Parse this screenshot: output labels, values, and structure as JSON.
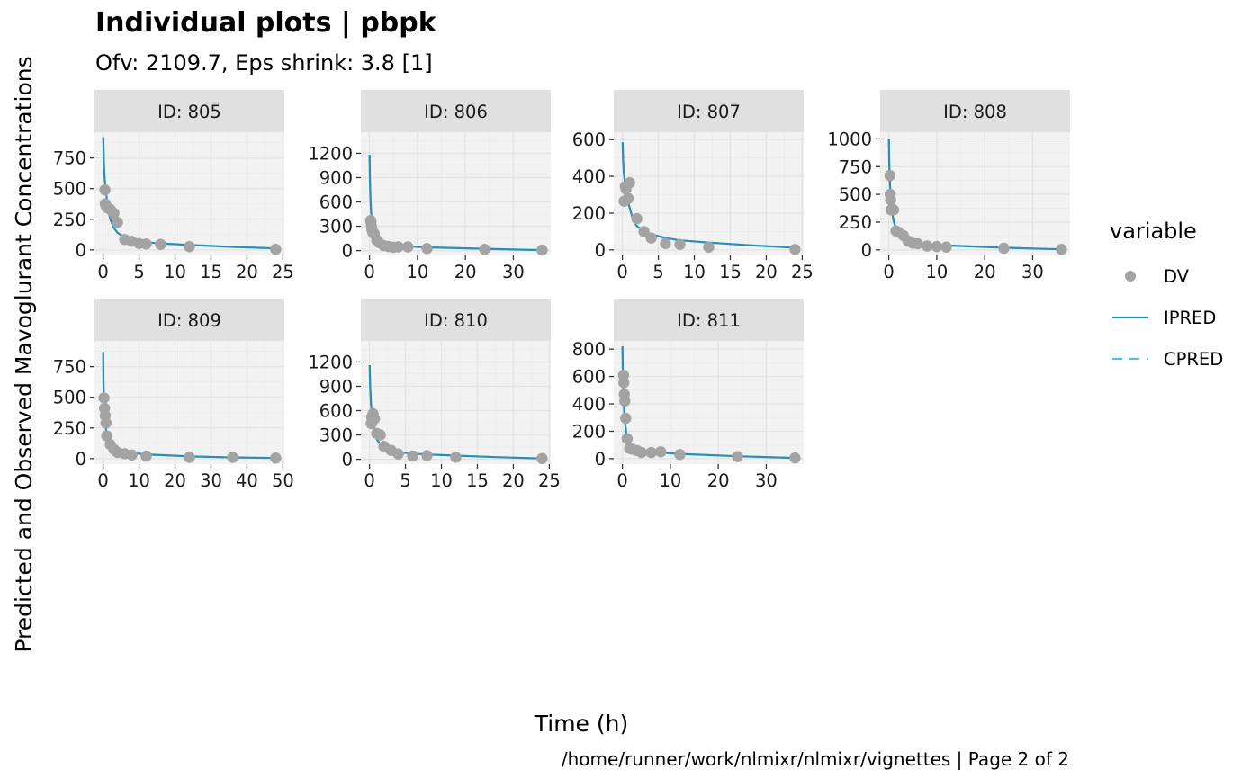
{
  "colors": {
    "panel_bg": "#f2f2f2",
    "grid_major": "#e3e3e3",
    "strip_bg": "#e0e0e0",
    "dv": "#a3a3a3",
    "ipred": "#2a8fb3",
    "cpred": "#4fc3e0",
    "tick": "#333333"
  },
  "chart_data": {
    "type": "scatter",
    "title": "Individual plots | pbpk",
    "subtitle": "Ofv: 2109.7, Eps shrink: 3.8 [1]",
    "xlabel": "Time (h)",
    "ylabel": "Predicted and Observed Mavoglurant Concentrations",
    "caption": "/home/runner/work/nlmixr/nlmixr/vignettes | Page 2 of 2",
    "legend": {
      "title": "variable",
      "position": "right",
      "entries": [
        {
          "label": "DV",
          "symbol": "point"
        },
        {
          "label": "IPRED",
          "symbol": "solid-line"
        },
        {
          "label": "CPRED",
          "symbol": "dashed-line"
        }
      ]
    },
    "grid": true,
    "panels": [
      {
        "strip": "ID: 805",
        "xlim": [
          -1.2,
          25.2
        ],
        "ylim": [
          -45,
          960
        ],
        "xticks": [
          0,
          5,
          10,
          15,
          20,
          25
        ],
        "yticks": [
          0,
          250,
          500,
          750
        ],
        "dv": [
          [
            0.25,
            490
          ],
          [
            0.3,
            375
          ],
          [
            0.4,
            360
          ],
          [
            0.5,
            350
          ],
          [
            0.7,
            340
          ],
          [
            1.0,
            330
          ],
          [
            1.5,
            300
          ],
          [
            2,
            225
          ],
          [
            3,
            85
          ],
          [
            4,
            70
          ],
          [
            5,
            52
          ],
          [
            6,
            48
          ],
          [
            8,
            45
          ],
          [
            12,
            27
          ],
          [
            24,
            5
          ]
        ],
        "ipred": [
          [
            0.02,
            920
          ],
          [
            0.1,
            720
          ],
          [
            0.2,
            590
          ],
          [
            0.4,
            470
          ],
          [
            0.6,
            380
          ],
          [
            0.8,
            300
          ],
          [
            1,
            250
          ],
          [
            1.5,
            180
          ],
          [
            2,
            140
          ],
          [
            3,
            100
          ],
          [
            4,
            80
          ],
          [
            6,
            63
          ],
          [
            8,
            53
          ],
          [
            12,
            40
          ],
          [
            18,
            25
          ],
          [
            24,
            12
          ]
        ]
      },
      {
        "strip": "ID: 806",
        "xlim": [
          -1.8,
          37.8
        ],
        "ylim": [
          -60,
          1460
        ],
        "xticks": [
          0,
          10,
          20,
          30
        ],
        "yticks": [
          0,
          300,
          600,
          900,
          1200
        ],
        "dv": [
          [
            0.25,
            370
          ],
          [
            0.3,
            355
          ],
          [
            0.4,
            300
          ],
          [
            0.5,
            260
          ],
          [
            0.7,
            220
          ],
          [
            1,
            210
          ],
          [
            1.5,
            130
          ],
          [
            2,
            100
          ],
          [
            3,
            60
          ],
          [
            4,
            50
          ],
          [
            5,
            40
          ],
          [
            6,
            45
          ],
          [
            8,
            45
          ],
          [
            12,
            25
          ],
          [
            24,
            15
          ],
          [
            36,
            5
          ]
        ],
        "ipred": [
          [
            0.02,
            1180
          ],
          [
            0.1,
            850
          ],
          [
            0.2,
            620
          ],
          [
            0.4,
            430
          ],
          [
            0.6,
            330
          ],
          [
            0.8,
            260
          ],
          [
            1,
            210
          ],
          [
            1.5,
            150
          ],
          [
            2,
            120
          ],
          [
            3,
            90
          ],
          [
            4,
            75
          ],
          [
            6,
            60
          ],
          [
            8,
            52
          ],
          [
            12,
            40
          ],
          [
            24,
            22
          ],
          [
            36,
            5
          ]
        ]
      },
      {
        "strip": "ID: 807",
        "xlim": [
          -1.2,
          25.2
        ],
        "ylim": [
          -30,
          640
        ],
        "xticks": [
          0,
          5,
          10,
          15,
          20,
          25
        ],
        "yticks": [
          0,
          200,
          400,
          600
        ],
        "dv": [
          [
            0.25,
            265
          ],
          [
            0.4,
            345
          ],
          [
            0.5,
            330
          ],
          [
            0.8,
            280
          ],
          [
            1,
            365
          ],
          [
            2,
            170
          ],
          [
            3,
            100
          ],
          [
            4,
            65
          ],
          [
            6,
            35
          ],
          [
            8,
            30
          ],
          [
            12,
            15
          ],
          [
            24,
            3
          ]
        ],
        "ipred": [
          [
            0.02,
            585
          ],
          [
            0.1,
            490
          ],
          [
            0.2,
            420
          ],
          [
            0.4,
            350
          ],
          [
            0.6,
            300
          ],
          [
            0.8,
            260
          ],
          [
            1,
            230
          ],
          [
            1.5,
            160
          ],
          [
            2,
            130
          ],
          [
            3,
            100
          ],
          [
            4,
            85
          ],
          [
            6,
            65
          ],
          [
            8,
            52
          ],
          [
            12,
            40
          ],
          [
            18,
            25
          ],
          [
            24,
            12
          ]
        ]
      },
      {
        "strip": "ID: 808",
        "xlim": [
          -1.8,
          37.8
        ],
        "ylim": [
          -50,
          1060
        ],
        "xticks": [
          0,
          10,
          20,
          30
        ],
        "yticks": [
          0,
          250,
          500,
          750,
          1000
        ],
        "dv": [
          [
            0.25,
            670
          ],
          [
            0.3,
            500
          ],
          [
            0.4,
            450
          ],
          [
            0.5,
            360
          ],
          [
            0.7,
            370
          ],
          [
            1,
            360
          ],
          [
            1.5,
            170
          ],
          [
            2,
            160
          ],
          [
            3,
            130
          ],
          [
            4,
            80
          ],
          [
            5,
            60
          ],
          [
            6,
            55
          ],
          [
            8,
            35
          ],
          [
            10,
            30
          ],
          [
            12,
            25
          ],
          [
            24,
            15
          ],
          [
            36,
            5
          ]
        ],
        "ipred": [
          [
            0.02,
            1000
          ],
          [
            0.1,
            780
          ],
          [
            0.2,
            620
          ],
          [
            0.4,
            470
          ],
          [
            0.6,
            380
          ],
          [
            0.8,
            310
          ],
          [
            1,
            260
          ],
          [
            1.5,
            190
          ],
          [
            2,
            150
          ],
          [
            3,
            110
          ],
          [
            4,
            90
          ],
          [
            6,
            65
          ],
          [
            8,
            55
          ],
          [
            12,
            40
          ],
          [
            24,
            20
          ],
          [
            36,
            5
          ]
        ]
      },
      {
        "strip": "ID: 809",
        "xlim": [
          -2.4,
          50.4
        ],
        "ylim": [
          -45,
          960
        ],
        "xticks": [
          0,
          10,
          20,
          30,
          40,
          50
        ],
        "yticks": [
          0,
          250,
          500,
          750
        ],
        "dv": [
          [
            0.25,
            495
          ],
          [
            0.4,
            410
          ],
          [
            0.6,
            350
          ],
          [
            0.8,
            290
          ],
          [
            1,
            185
          ],
          [
            2,
            115
          ],
          [
            3,
            75
          ],
          [
            4,
            50
          ],
          [
            6,
            40
          ],
          [
            8,
            30
          ],
          [
            12,
            20
          ],
          [
            24,
            10
          ],
          [
            36,
            10
          ],
          [
            48,
            5
          ]
        ],
        "ipred": [
          [
            0.02,
            870
          ],
          [
            0.1,
            640
          ],
          [
            0.2,
            500
          ],
          [
            0.4,
            380
          ],
          [
            0.6,
            300
          ],
          [
            0.8,
            240
          ],
          [
            1,
            200
          ],
          [
            1.5,
            140
          ],
          [
            2,
            110
          ],
          [
            3,
            80
          ],
          [
            4,
            65
          ],
          [
            6,
            50
          ],
          [
            8,
            45
          ],
          [
            12,
            35
          ],
          [
            24,
            18
          ],
          [
            36,
            10
          ],
          [
            48,
            5
          ]
        ]
      },
      {
        "strip": "ID: 810",
        "xlim": [
          -1.2,
          25.2
        ],
        "ylim": [
          -60,
          1460
        ],
        "xticks": [
          0,
          5,
          10,
          15,
          20,
          25
        ],
        "yticks": [
          0,
          300,
          600,
          900,
          1200
        ],
        "dv": [
          [
            0.25,
            440
          ],
          [
            0.3,
            520
          ],
          [
            0.4,
            470
          ],
          [
            0.5,
            560
          ],
          [
            0.7,
            500
          ],
          [
            1,
            320
          ],
          [
            1.5,
            300
          ],
          [
            2,
            160
          ],
          [
            3,
            110
          ],
          [
            4,
            65
          ],
          [
            6,
            40
          ],
          [
            8,
            45
          ],
          [
            12,
            25
          ],
          [
            24,
            10
          ]
        ],
        "ipred": [
          [
            0.02,
            1160
          ],
          [
            0.1,
            880
          ],
          [
            0.2,
            690
          ],
          [
            0.4,
            500
          ],
          [
            0.6,
            390
          ],
          [
            0.8,
            300
          ],
          [
            1,
            250
          ],
          [
            1.5,
            180
          ],
          [
            2,
            140
          ],
          [
            3,
            110
          ],
          [
            4,
            90
          ],
          [
            6,
            70
          ],
          [
            8,
            60
          ],
          [
            12,
            45
          ],
          [
            18,
            25
          ],
          [
            24,
            10
          ]
        ]
      },
      {
        "strip": "ID: 811",
        "xlim": [
          -1.8,
          37.8
        ],
        "ylim": [
          -40,
          860
        ],
        "xticks": [
          0,
          10,
          20,
          30
        ],
        "yticks": [
          0,
          200,
          400,
          600,
          800
        ],
        "dv": [
          [
            0.25,
            610
          ],
          [
            0.3,
            555
          ],
          [
            0.4,
            470
          ],
          [
            0.5,
            420
          ],
          [
            0.7,
            295
          ],
          [
            1,
            145
          ],
          [
            1.5,
            75
          ],
          [
            2,
            70
          ],
          [
            3,
            60
          ],
          [
            4,
            45
          ],
          [
            6,
            45
          ],
          [
            8,
            50
          ],
          [
            12,
            30
          ],
          [
            24,
            15
          ],
          [
            36,
            5
          ]
        ],
        "ipred": [
          [
            0.02,
            820
          ],
          [
            0.1,
            620
          ],
          [
            0.2,
            480
          ],
          [
            0.4,
            340
          ],
          [
            0.6,
            250
          ],
          [
            0.8,
            190
          ],
          [
            1,
            150
          ],
          [
            1.5,
            110
          ],
          [
            2,
            90
          ],
          [
            3,
            70
          ],
          [
            4,
            60
          ],
          [
            6,
            50
          ],
          [
            8,
            45
          ],
          [
            12,
            35
          ],
          [
            24,
            18
          ],
          [
            36,
            5
          ]
        ]
      }
    ]
  }
}
